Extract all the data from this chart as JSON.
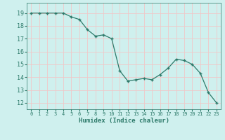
{
  "x": [
    0,
    1,
    2,
    3,
    4,
    5,
    6,
    7,
    8,
    9,
    10,
    11,
    12,
    13,
    14,
    15,
    16,
    17,
    18,
    19,
    20,
    21,
    22,
    23
  ],
  "y": [
    19.0,
    19.0,
    19.0,
    19.0,
    19.0,
    18.7,
    18.5,
    17.7,
    17.2,
    17.3,
    17.0,
    14.5,
    13.7,
    13.8,
    13.9,
    13.8,
    14.2,
    14.7,
    15.4,
    15.3,
    15.0,
    14.3,
    12.8,
    12.0
  ],
  "xlabel": "Humidex (Indice chaleur)",
  "ylim": [
    11.5,
    19.8
  ],
  "xlim": [
    -0.5,
    23.5
  ],
  "yticks": [
    12,
    13,
    14,
    15,
    16,
    17,
    18,
    19
  ],
  "xticks": [
    0,
    1,
    2,
    3,
    4,
    5,
    6,
    7,
    8,
    9,
    10,
    11,
    12,
    13,
    14,
    15,
    16,
    17,
    18,
    19,
    20,
    21,
    22,
    23
  ],
  "line_color": "#2d7a6a",
  "marker_color": "#2d7a6a",
  "bg_color": "#cff0ee",
  "grid_color_major": "#f0c8c8",
  "grid_color_minor": "#ffffff",
  "fig_bg": "#cff0ee",
  "tick_label_color": "#2d7a6a",
  "xlabel_color": "#2d7a6a"
}
